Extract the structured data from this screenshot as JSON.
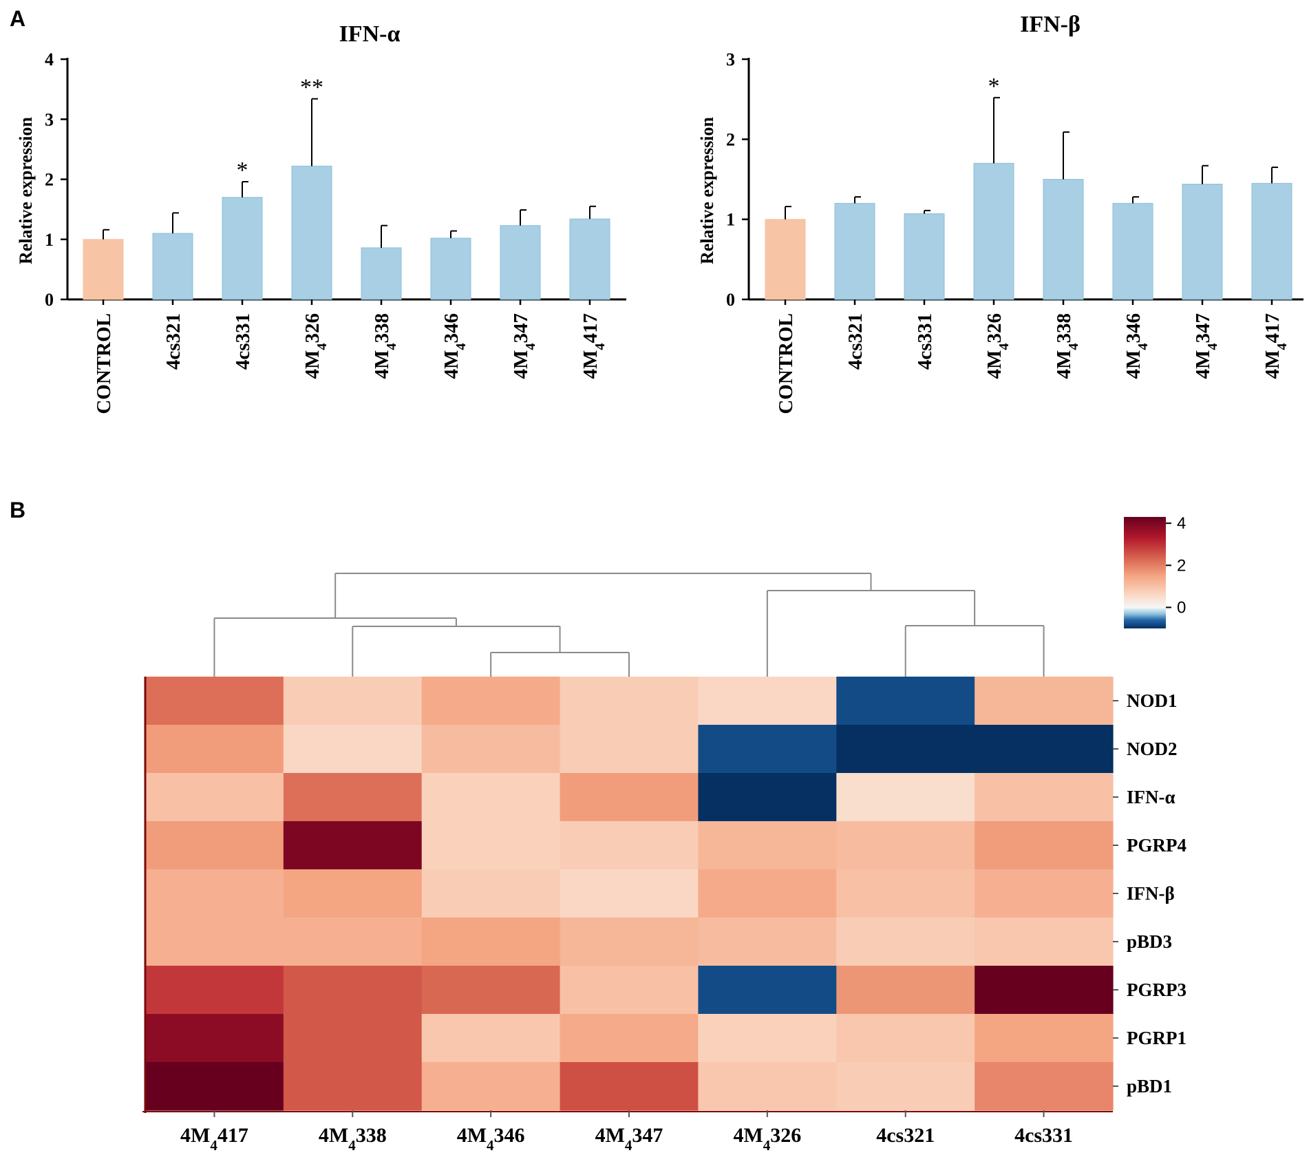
{
  "figure": {
    "panel_a_label": "A",
    "panel_b_label": "B"
  },
  "colors": {
    "control_bar": "#f7c4a5",
    "treatment_bar": "#a8cfe3",
    "treatment_bar_edge": "#8dbfd8",
    "heatmap_low": "#053061",
    "heatmap_mid": "#f7f7f7",
    "heatmap_high": "#67001f"
  },
  "chart_data": [
    {
      "type": "bar",
      "title": "IFN-α",
      "xlabel": "",
      "ylabel": "Relative expression",
      "ylim": [
        0,
        4
      ],
      "yticks": [
        0,
        1,
        2,
        3,
        4
      ],
      "categories": [
        "CONTROL",
        "4cs321",
        "4cs331",
        "4M₄326",
        "4M₄338",
        "4M₄346",
        "4M₄347",
        "4M₄417"
      ],
      "values": [
        1.0,
        1.1,
        1.7,
        2.22,
        0.86,
        1.02,
        1.23,
        1.34
      ],
      "error_upper": [
        1.16,
        1.44,
        1.96,
        3.34,
        1.23,
        1.14,
        1.49,
        1.55
      ],
      "significance": [
        "",
        "",
        "*",
        "**",
        "",
        "",
        "",
        ""
      ]
    },
    {
      "type": "bar",
      "title": "IFN-β",
      "xlabel": "",
      "ylabel": "Relative expression",
      "ylim": [
        0,
        3
      ],
      "yticks": [
        0,
        1,
        2,
        3
      ],
      "categories": [
        "CONTROL",
        "4cs321",
        "4cs331",
        "4M₄326",
        "4M₄338",
        "4M₄346",
        "4M₄347",
        "4M₄417"
      ],
      "values": [
        1.0,
        1.2,
        1.07,
        1.7,
        1.5,
        1.2,
        1.44,
        1.45
      ],
      "error_upper": [
        1.16,
        1.28,
        1.11,
        2.52,
        2.09,
        1.28,
        1.67,
        1.65
      ],
      "significance": [
        "",
        "",
        "",
        "*",
        "",
        "",
        "",
        ""
      ]
    },
    {
      "type": "heatmap",
      "title": "",
      "columns": [
        "4M₄417",
        "4M₄338",
        "4M₄346",
        "4M₄347",
        "4M₄326",
        "4cs321",
        "4cs331"
      ],
      "rows": [
        "NOD1",
        "NOD2",
        "IFN-α",
        "PGRP4",
        "IFN-β",
        "pBD3",
        "PGRP3",
        "PGRP1",
        "pBD1"
      ],
      "values": [
        [
          2.2,
          0.8,
          1.4,
          0.8,
          0.6,
          -0.8,
          1.2
        ],
        [
          1.6,
          0.6,
          1.1,
          0.8,
          -0.8,
          -1.4,
          -1.0
        ],
        [
          1.0,
          2.2,
          0.7,
          1.6,
          -1.4,
          0.5,
          1.0
        ],
        [
          1.6,
          4.0,
          0.7,
          0.8,
          1.2,
          1.1,
          1.6
        ],
        [
          1.3,
          1.5,
          0.8,
          0.6,
          1.4,
          1.0,
          1.3
        ],
        [
          1.3,
          1.3,
          1.5,
          1.2,
          1.1,
          0.8,
          0.9
        ],
        [
          2.9,
          2.5,
          2.3,
          1.0,
          -0.8,
          1.7,
          4.3
        ],
        [
          3.8,
          2.5,
          0.9,
          1.4,
          0.7,
          0.9,
          1.5
        ],
        [
          4.4,
          2.5,
          1.3,
          2.6,
          0.9,
          0.8,
          1.9
        ]
      ],
      "colorbar": {
        "range": [
          -1.0,
          4.3
        ],
        "ticks": [
          4,
          2,
          0
        ]
      },
      "column_dendrogram": "((4M₄417,(4M₄338,(4M₄346,4M₄347))),(4M₄326,(4cs321,4cs331)))"
    }
  ]
}
